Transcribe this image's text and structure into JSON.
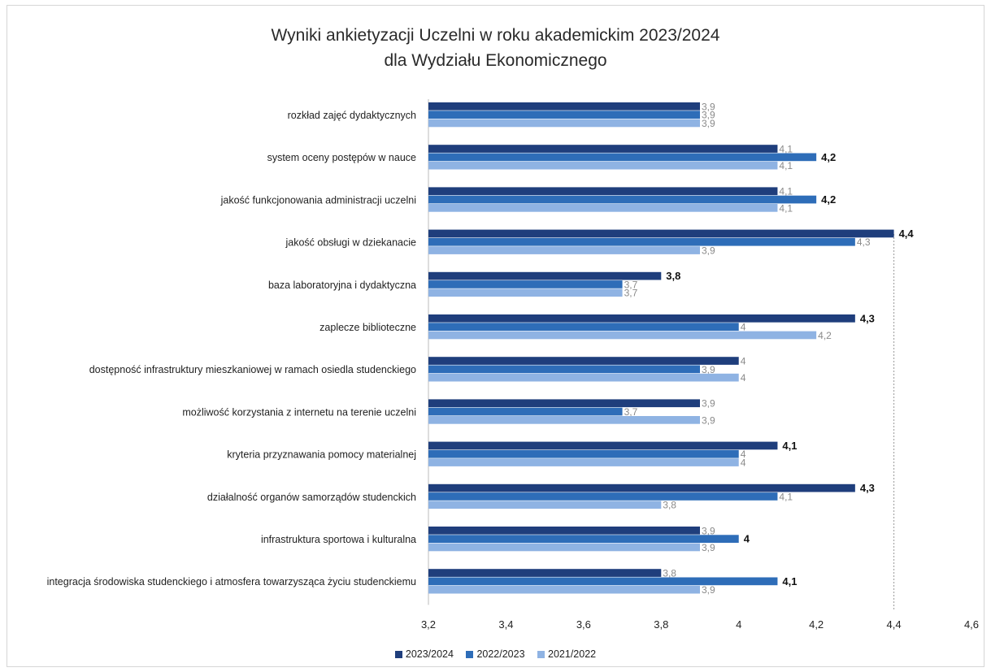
{
  "chart_data": {
    "type": "bar",
    "orientation": "horizontal",
    "title": "Wyniki ankietyzacji Uczelni w roku akademickim 2023/2024",
    "subtitle": "dla Wydziału Ekonomicznego",
    "xlim": [
      3.2,
      4.6
    ],
    "ticks": [
      "3,2",
      "3,4",
      "3,6",
      "3,8",
      "4",
      "4,2",
      "4,4",
      "4,6"
    ],
    "tick_values": [
      3.2,
      3.4,
      3.6,
      3.8,
      4.0,
      4.2,
      4.4,
      4.6
    ],
    "categories": [
      "rozkład zajęć dydaktycznych",
      "system oceny postępów w nauce",
      "jakość funkcjonowania administracji uczelni",
      "jakość obsługi w dziekanacie",
      "baza laboratoryjna i dydaktyczna",
      "zaplecze biblioteczne",
      "dostępność infrastruktury mieszkaniowej w ramach osiedla studenckiego",
      "możliwość korzystania z internetu na terenie uczelni",
      "kryteria przyznawania pomocy materialnej",
      "działalność organów samorządów studenckich",
      "infrastruktura sportowa i kulturalna",
      "integracja środowiska studenckiego i atmosfera towarzysząca życiu studenckiemu"
    ],
    "series": [
      {
        "name": "2023/2024",
        "color": "#1f3e7c",
        "values": [
          3.9,
          4.1,
          4.1,
          4.4,
          3.8,
          4.3,
          4.0,
          3.9,
          4.1,
          4.3,
          3.9,
          3.8
        ],
        "labels": [
          "3,9",
          "4,1",
          "4,1",
          "4,4",
          "3,8",
          "4,3",
          "4",
          "3,9",
          "4,1",
          "4,3",
          "3,9",
          "3,8"
        ]
      },
      {
        "name": "2022/2023",
        "color": "#2e6db8",
        "values": [
          3.9,
          4.2,
          4.2,
          4.3,
          3.7,
          4.0,
          3.9,
          3.7,
          4.0,
          4.1,
          4.0,
          4.1
        ],
        "labels": [
          "3,9",
          "4,2",
          "4,2",
          "4,3",
          "3,7",
          "4",
          "3,9",
          "3,7",
          "4",
          "4,1",
          "4",
          "4,1"
        ]
      },
      {
        "name": "2021/2022",
        "color": "#8fb3e3",
        "values": [
          3.9,
          4.1,
          4.1,
          3.9,
          3.7,
          4.2,
          4.0,
          3.9,
          4.0,
          3.8,
          3.9,
          3.9
        ],
        "labels": [
          "3,9",
          "4,1",
          "4,1",
          "3,9",
          "3,7",
          "4,2",
          "4",
          "3,9",
          "4",
          "3,8",
          "3,9",
          "3,9"
        ]
      }
    ],
    "legend_position": "bottom",
    "grid": false
  }
}
